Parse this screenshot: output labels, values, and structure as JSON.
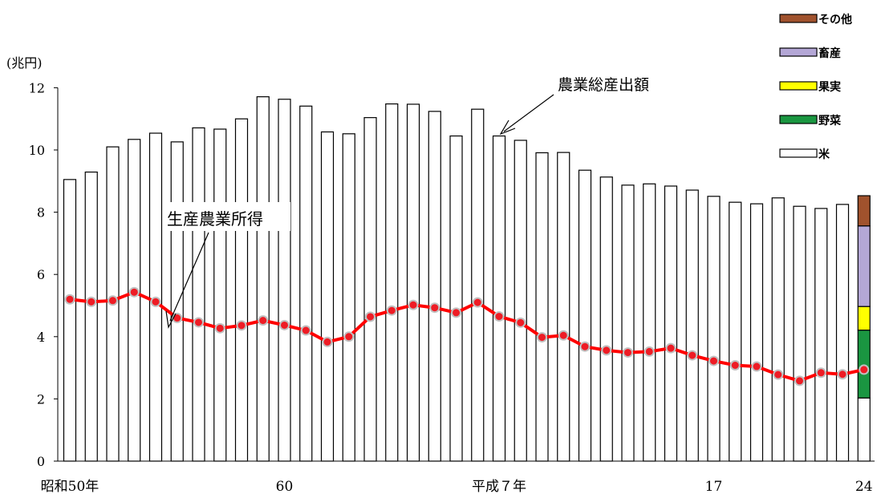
{
  "chart_data": {
    "type": "bar",
    "unit_label": "(兆円)",
    "yticks": [
      0,
      2,
      4,
      6,
      8,
      10,
      12
    ],
    "ylim": [
      0,
      12
    ],
    "x_tick_labels": [
      {
        "index": 0,
        "label": "昭和50年"
      },
      {
        "index": 10,
        "label": "60"
      },
      {
        "index": 20,
        "label": "平成７年"
      },
      {
        "index": 30,
        "label": "17"
      },
      {
        "index": 37,
        "label": "24"
      }
    ],
    "series": [
      {
        "name": "農業総産出額",
        "type": "bar",
        "values": [
          9.05,
          9.29,
          10.1,
          10.34,
          10.54,
          10.26,
          10.71,
          10.67,
          11.0,
          11.71,
          11.63,
          11.41,
          10.58,
          10.52,
          11.04,
          11.48,
          11.47,
          11.24,
          10.45,
          11.31,
          10.45,
          10.31,
          9.91,
          9.92,
          9.35,
          9.13,
          8.87,
          8.91,
          8.84,
          8.71,
          8.51,
          8.32,
          8.27,
          8.46,
          8.19,
          8.12,
          8.25
        ]
      },
      {
        "name": "生産農業所得",
        "type": "line",
        "values": [
          5.2,
          5.12,
          5.16,
          5.43,
          5.12,
          4.6,
          4.46,
          4.27,
          4.36,
          4.52,
          4.37,
          4.2,
          3.83,
          4.0,
          4.64,
          4.84,
          5.02,
          4.93,
          4.77,
          5.1,
          4.65,
          4.45,
          3.98,
          4.04,
          3.68,
          3.56,
          3.49,
          3.52,
          3.63,
          3.4,
          3.22,
          3.08,
          3.04,
          2.78,
          2.58,
          2.84,
          2.79,
          2.94
        ]
      }
    ],
    "stacked_last_bar": {
      "index": 37,
      "segments": [
        {
          "name": "米",
          "value": 2.03,
          "color": "#ffffff"
        },
        {
          "name": "野菜",
          "value": 2.18,
          "color": "#1a9641"
        },
        {
          "name": "果実",
          "value": 0.76,
          "color": "#ffff00"
        },
        {
          "name": "畜産",
          "value": 2.59,
          "color": "#b4a7d6"
        },
        {
          "name": "その他",
          "value": 0.97,
          "color": "#a0522d"
        }
      ]
    },
    "annotations": {
      "gross_output": "農業総産出額",
      "income": "生産農業所得"
    },
    "legend": {
      "placement": "top-right",
      "entries": [
        {
          "name": "その他",
          "color": "#a0522d"
        },
        {
          "name": "畜産",
          "color": "#b4a7d6"
        },
        {
          "name": "果実",
          "color": "#ffff00"
        },
        {
          "name": "野菜",
          "color": "#1a9641"
        },
        {
          "name": "米",
          "color": "#ffffff"
        }
      ]
    },
    "colors": {
      "line": "#ff0000",
      "marker_fill": "#ee1c25",
      "marker_edge": "#c0c0c0"
    }
  }
}
